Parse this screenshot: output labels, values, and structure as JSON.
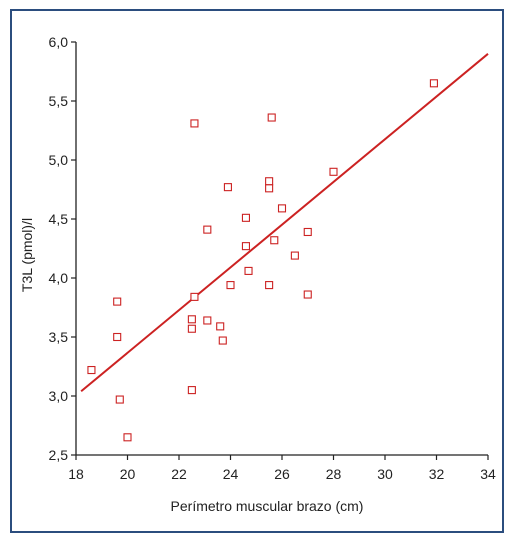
{
  "chart_data": {
    "type": "scatter",
    "title": "",
    "xlabel": "Perímetro muscular brazo (cm)",
    "ylabel": "T3L (pmol)/l",
    "xlim": [
      18,
      34
    ],
    "ylim": [
      2.5,
      6.0
    ],
    "x_ticks": [
      18,
      20,
      22,
      24,
      26,
      28,
      30,
      32,
      34
    ],
    "x_tick_labels": [
      "18",
      "20",
      "22",
      "24",
      "26",
      "28",
      "30",
      "32",
      "34"
    ],
    "y_ticks": [
      2.5,
      3.0,
      3.5,
      4.0,
      4.5,
      5.0,
      5.5,
      6.0
    ],
    "y_tick_labels": [
      "2,5",
      "3,0",
      "3,5",
      "4,0",
      "4,5",
      "5,0",
      "5,5",
      "6,0"
    ],
    "grid": false,
    "marker": "open-square",
    "marker_color": "#cc2222",
    "line_color": "#cc2222",
    "axis_color": "#222222",
    "frame_color": "#2b4d7e",
    "points": [
      {
        "x": 18.6,
        "y": 3.22
      },
      {
        "x": 19.6,
        "y": 3.8
      },
      {
        "x": 19.6,
        "y": 3.5
      },
      {
        "x": 19.7,
        "y": 2.97
      },
      {
        "x": 20.0,
        "y": 2.65
      },
      {
        "x": 22.5,
        "y": 3.05
      },
      {
        "x": 22.5,
        "y": 3.57
      },
      {
        "x": 22.5,
        "y": 3.65
      },
      {
        "x": 22.6,
        "y": 3.84
      },
      {
        "x": 22.6,
        "y": 5.31
      },
      {
        "x": 23.1,
        "y": 3.64
      },
      {
        "x": 23.1,
        "y": 4.41
      },
      {
        "x": 23.6,
        "y": 3.59
      },
      {
        "x": 23.7,
        "y": 3.47
      },
      {
        "x": 23.9,
        "y": 4.77
      },
      {
        "x": 24.0,
        "y": 3.94
      },
      {
        "x": 24.6,
        "y": 4.51
      },
      {
        "x": 24.6,
        "y": 4.27
      },
      {
        "x": 24.7,
        "y": 4.06
      },
      {
        "x": 25.5,
        "y": 4.82
      },
      {
        "x": 25.5,
        "y": 4.76
      },
      {
        "x": 25.5,
        "y": 3.94
      },
      {
        "x": 25.6,
        "y": 5.36
      },
      {
        "x": 25.7,
        "y": 4.32
      },
      {
        "x": 26.0,
        "y": 4.59
      },
      {
        "x": 26.5,
        "y": 4.19
      },
      {
        "x": 27.0,
        "y": 4.39
      },
      {
        "x": 27.0,
        "y": 3.86
      },
      {
        "x": 28.0,
        "y": 4.9
      },
      {
        "x": 31.9,
        "y": 5.65
      }
    ],
    "regression_line": {
      "x": [
        18.2,
        34.0
      ],
      "y": [
        3.04,
        5.9
      ]
    }
  }
}
